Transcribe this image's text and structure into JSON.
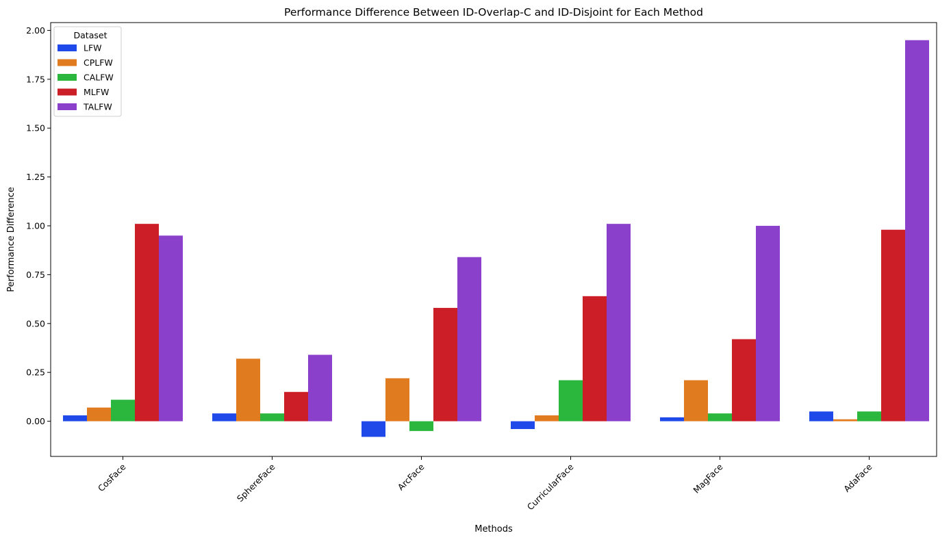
{
  "chart_data": {
    "type": "bar",
    "title": "Performance Difference Between ID-Overlap-C and ID-Disjoint for Each Method",
    "xlabel": "Methods",
    "ylabel": "Performance Difference",
    "categories": [
      "CosFace",
      "SphereFace",
      "ArcFace",
      "CurricularFace",
      "MagFace",
      "AdaFace"
    ],
    "ylim": [
      -0.18,
      2.04
    ],
    "yticks": [
      0.0,
      0.25,
      0.5,
      0.75,
      1.0,
      1.25,
      1.5,
      1.75,
      2.0
    ],
    "ytick_labels": [
      "0.00",
      "0.25",
      "0.50",
      "0.75",
      "1.00",
      "1.25",
      "1.50",
      "1.75",
      "2.00"
    ],
    "grid": false,
    "legend": {
      "title": "Dataset",
      "placement": "top-left"
    },
    "series": [
      {
        "name": "LFW",
        "color": "#1f49e8",
        "values": [
          0.03,
          0.04,
          -0.08,
          -0.04,
          0.02,
          0.05
        ]
      },
      {
        "name": "CPLFW",
        "color": "#e07b1f",
        "values": [
          0.07,
          0.32,
          0.22,
          0.03,
          0.21,
          0.01
        ]
      },
      {
        "name": "CALFW",
        "color": "#2bb73d",
        "values": [
          0.11,
          0.04,
          -0.05,
          0.21,
          0.04,
          0.05
        ]
      },
      {
        "name": "MLFW",
        "color": "#cc1e27",
        "values": [
          1.01,
          0.15,
          0.58,
          0.64,
          0.42,
          0.98
        ]
      },
      {
        "name": "TALFW",
        "color": "#8b40cc",
        "values": [
          0.95,
          0.34,
          0.84,
          1.01,
          1.0,
          1.95
        ]
      }
    ]
  }
}
